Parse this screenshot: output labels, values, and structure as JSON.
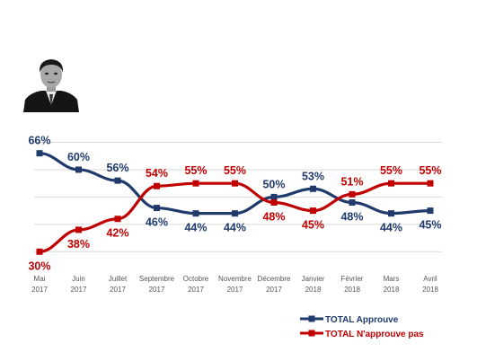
{
  "photo": {
    "icon": "portrait-photo"
  },
  "chart_data": {
    "type": "line",
    "categories": [
      [
        "Mai",
        "2017"
      ],
      [
        "Juin",
        "2017"
      ],
      [
        "Juillet",
        "2017"
      ],
      [
        "Septembre",
        "2017"
      ],
      [
        "Octobre",
        "2017"
      ],
      [
        "Novembre",
        "2017"
      ],
      [
        "Décembre",
        "2017"
      ],
      [
        "Janvier",
        "2018"
      ],
      [
        "Février",
        "2018"
      ],
      [
        "Mars",
        "2018"
      ],
      [
        "Avril",
        "2018"
      ]
    ],
    "series": [
      {
        "name": "TOTAL Approuve",
        "color": "#1f3a6b",
        "values": [
          66,
          60,
          56,
          46,
          44,
          44,
          50,
          53,
          48,
          44,
          45
        ],
        "labels": [
          "66%",
          "60%",
          "56%",
          "46%",
          "44%",
          "44%",
          "50%",
          "53%",
          "48%",
          "44%",
          "45%"
        ],
        "label_position": [
          "above",
          "above",
          "above",
          "below",
          "below",
          "below",
          "above",
          "above",
          "below",
          "below",
          "below"
        ]
      },
      {
        "name": "TOTAL N'approuve pas",
        "color": "#c00000",
        "values": [
          30,
          38,
          42,
          54,
          55,
          55,
          48,
          45,
          51,
          55,
          55
        ],
        "labels": [
          "30%",
          "38%",
          "42%",
          "54%",
          "55%",
          "55%",
          "48%",
          "45%",
          "51%",
          "55%",
          "55%"
        ],
        "label_position": [
          "below",
          "below",
          "below",
          "above",
          "above",
          "above",
          "below",
          "below",
          "above",
          "above",
          "above"
        ]
      }
    ],
    "ylim": [
      25,
      70
    ],
    "gridlines": [
      30,
      40,
      50,
      60,
      70
    ],
    "grid": true,
    "legend_position": "bottom-right"
  }
}
